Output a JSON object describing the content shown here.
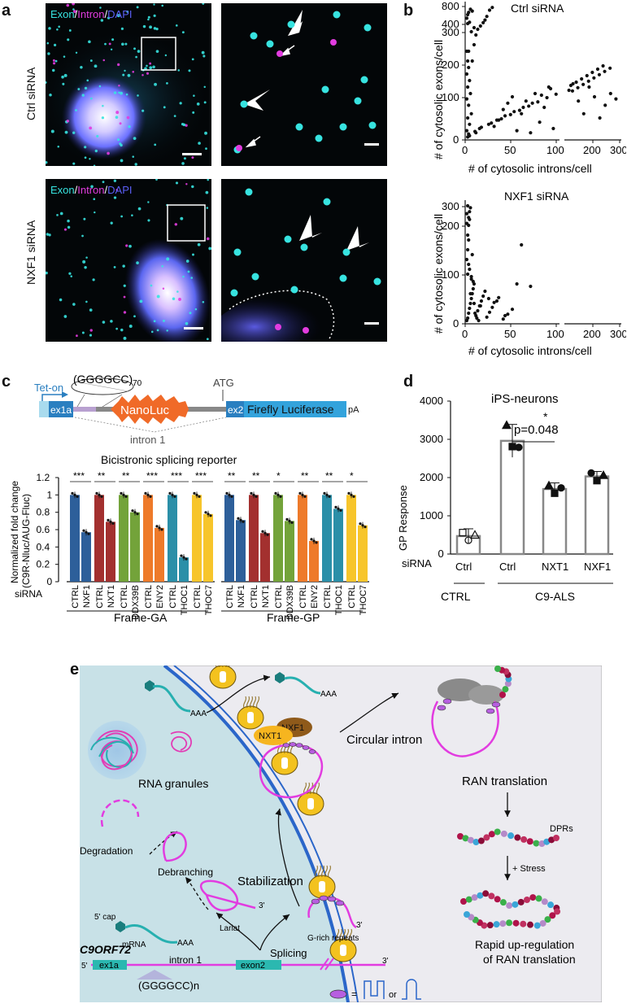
{
  "panels": {
    "a": {
      "label": "a",
      "rows": [
        {
          "label": "Ctrl siRNA",
          "channels": [
            "Exon",
            "/",
            "Intron",
            "/",
            "DAPI"
          ]
        },
        {
          "label": "NXF1 siRNA",
          "channels": [
            "Exon",
            "/",
            "Intron",
            "/",
            "DAPI"
          ]
        }
      ],
      "colors": {
        "exon": "#37e3e0",
        "intron": "#e23ce0",
        "dapi": "#3b3ff0"
      }
    },
    "b": {
      "label": "b",
      "plots": [
        {
          "title": "Ctrl siRNA",
          "ylabel": "# of cytosolic exons/cell",
          "xlabel": "# of cytosolic introns/cell"
        },
        {
          "title": "NXF1 siRNA",
          "ylabel": "# of cytosolic exons/cell",
          "xlabel": "# of cytosolic introns/cell"
        }
      ]
    },
    "c": {
      "label": "c",
      "construct": {
        "tet_on": "Tet-on",
        "repeat": "(GGGGCC)",
        "repeat_sub": "70",
        "ex1a": "ex1a",
        "nanoluc": "NanoLuc",
        "atg": "ATG",
        "ex2": "ex2",
        "firefly": "Firefly Luciferase",
        "pa": "pA",
        "intron": "intron 1",
        "title": "Bicistronic splicing reporter"
      }
    },
    "d": {
      "label": "d"
    },
    "e": {
      "label": "e",
      "texts": {
        "circular_intron": "Circular intron",
        "ran_translation": "RAN translation",
        "dprs": "DPRs",
        "stress": "+ Stress",
        "rapid1": "Rapid up-regulation",
        "rapid2": "of RAN translation",
        "rna_granules": "RNA granules",
        "nxf1": "NXF1",
        "nxt1": "NXT1",
        "degradation": "Degradation",
        "debranching": "Debranching",
        "stabilization": "Stabilization",
        "lariat": "Lariat",
        "three_prime": "3'",
        "g_rich": "G-rich repeats",
        "cap": "5' cap",
        "mrna": "mRNA",
        "aaa": "AAA",
        "splicing": "Splicing",
        "gene": "C9ORF72",
        "five": "5'",
        "ex1a": "ex1a",
        "intron1": "intron 1",
        "exon2": "exon2",
        "repeat": "(GGGGCC)n",
        "equals": "=",
        "or": "or"
      }
    }
  },
  "chart_data": [
    {
      "type": "scatter",
      "title": "Ctrl siRNA",
      "xlabel": "# of cytosolic introns/cell",
      "ylabel": "# of cytosolic exons/cell",
      "x_ticks": [
        "0",
        "50",
        "100",
        "200",
        "300"
      ],
      "y_ticks": [
        "0",
        "100",
        "200",
        "300",
        "400",
        "800"
      ],
      "broken_axes": true,
      "x": [
        1,
        2,
        0,
        3,
        1,
        5,
        2,
        0,
        4,
        1,
        3,
        0,
        2,
        6,
        8,
        10,
        12,
        15,
        18,
        20,
        22,
        25,
        28,
        30,
        35,
        40,
        45,
        50,
        55,
        60,
        65,
        70,
        75,
        80,
        85,
        90,
        95,
        105,
        120,
        140,
        160,
        180,
        200,
        220,
        240,
        260,
        280,
        2,
        5,
        8,
        1,
        3,
        0,
        10,
        14,
        24,
        33,
        42,
        52,
        62,
        72,
        82,
        92,
        112,
        132,
        152,
        172,
        192,
        212,
        232,
        3,
        9,
        16,
        27,
        38,
        48,
        58,
        68,
        78,
        88,
        98,
        118,
        138,
        158,
        178,
        198,
        218,
        238,
        258,
        1,
        2,
        4,
        6,
        0,
        1
      ],
      "y": [
        5,
        12,
        20,
        35,
        50,
        60,
        80,
        95,
        110,
        130,
        150,
        170,
        190,
        210,
        260,
        290,
        330,
        370,
        420,
        480,
        560,
        700,
        760,
        30,
        45,
        70,
        85,
        100,
        20,
        60,
        90,
        15,
        110,
        40,
        75,
        130,
        25,
        120,
        140,
        90,
        60,
        130,
        100,
        50,
        80,
        110,
        95,
        240,
        300,
        350,
        400,
        430,
        520,
        15,
        25,
        35,
        45,
        55,
        65,
        75,
        85,
        105,
        125,
        135,
        145,
        155,
        165,
        175,
        185,
        195,
        8,
        18,
        28,
        38,
        48,
        58,
        68,
        78,
        88,
        98,
        108,
        118,
        128,
        138,
        148,
        158,
        168,
        178,
        188,
        600,
        650,
        720,
        680,
        240,
        210
      ]
    },
    {
      "type": "scatter",
      "title": "NXF1 siRNA",
      "xlabel": "# of cytosolic introns/cell",
      "ylabel": "# of cytosolic exons/cell",
      "x_ticks": [
        "0",
        "50",
        "100",
        "200",
        "300"
      ],
      "y_ticks": [
        "0",
        "100",
        "200",
        "300"
      ],
      "broken_axes": true,
      "x": [
        0,
        1,
        2,
        3,
        4,
        5,
        6,
        7,
        8,
        10,
        12,
        14,
        16,
        18,
        20,
        22,
        25,
        28,
        30,
        35,
        40,
        45,
        50,
        60,
        70,
        1,
        2,
        3,
        0,
        4,
        2,
        1,
        5,
        3,
        0,
        6,
        2,
        8,
        1,
        4,
        9,
        11,
        13,
        3,
        2,
        0,
        1,
        5,
        7,
        15,
        24,
        33,
        42,
        55
      ],
      "y": [
        5,
        10,
        20,
        30,
        40,
        50,
        60,
        70,
        80,
        15,
        25,
        35,
        45,
        55,
        65,
        12,
        22,
        32,
        42,
        52,
        8,
        18,
        28,
        160,
        75,
        150,
        200,
        230,
        260,
        290,
        120,
        100,
        90,
        110,
        130,
        140,
        170,
        40,
        180,
        60,
        20,
        10,
        5,
        270,
        240,
        210,
        300,
        95,
        85,
        35,
        50,
        45,
        15,
        80
      ]
    },
    {
      "type": "bar",
      "title": "Bicistronic splicing reporter",
      "ylabel": "Normalized fold change (C9R-Nluc/AUG-Fluc)",
      "xlabel": "siRNA",
      "ylim": [
        0,
        1.2
      ],
      "y_ticks": [
        "0",
        "0.2",
        "0.4",
        "0.6",
        "0.8",
        "1",
        "1.2"
      ],
      "groups": [
        {
          "name": "Frame-GA",
          "categories": [
            "CTRL",
            "NXF1",
            "CTRL",
            "NXT1",
            "CTRL",
            "DDX39B",
            "CTRL",
            "ENY2",
            "CTRL",
            "THOC1",
            "CTRL",
            "THOC7"
          ],
          "values": [
            1,
            0.57,
            1,
            0.69,
            1,
            0.8,
            1,
            0.62,
            1,
            0.28,
            1,
            0.78
          ],
          "significance": [
            "***",
            "**",
            "**",
            "***",
            "***",
            "***"
          ]
        },
        {
          "name": "Frame-GP",
          "categories": [
            "CTRL",
            "NXF1",
            "CTRL",
            "NXT1",
            "CTRL",
            "DDX39B",
            "CTRL",
            "ENY2",
            "CTRL",
            "THOC1",
            "CTRL",
            "THOC7"
          ],
          "values": [
            1,
            0.71,
            1,
            0.56,
            1,
            0.7,
            1,
            0.47,
            1,
            0.84,
            1,
            0.65
          ],
          "significance": [
            "**",
            "**",
            "*",
            "**",
            "**",
            "*"
          ]
        }
      ],
      "colors": [
        "#2d5f9a",
        "#2d5f9a",
        "#a3302f",
        "#a3302f",
        "#73a33a",
        "#73a33a",
        "#ee7a2a",
        "#ee7a2a",
        "#2b8fa8",
        "#2b8fa8",
        "#f7c52b",
        "#f7c52b"
      ]
    },
    {
      "type": "bar",
      "title": "iPS-neurons",
      "ylabel": "GP Response",
      "ylim": [
        0,
        4000
      ],
      "y_ticks": [
        "0",
        "1000",
        "2000",
        "3000",
        "4000"
      ],
      "categories": [
        "Ctrl",
        "Ctrl",
        "NXT1",
        "NXF1"
      ],
      "values": [
        470,
        2960,
        1700,
        2030
      ],
      "errors": [
        190,
        430,
        160,
        130
      ],
      "siRNA_label": "siRNA",
      "group_labels": [
        "CTRL",
        "C9-ALS"
      ],
      "annotation": "p=0.048",
      "star": "*"
    }
  ]
}
